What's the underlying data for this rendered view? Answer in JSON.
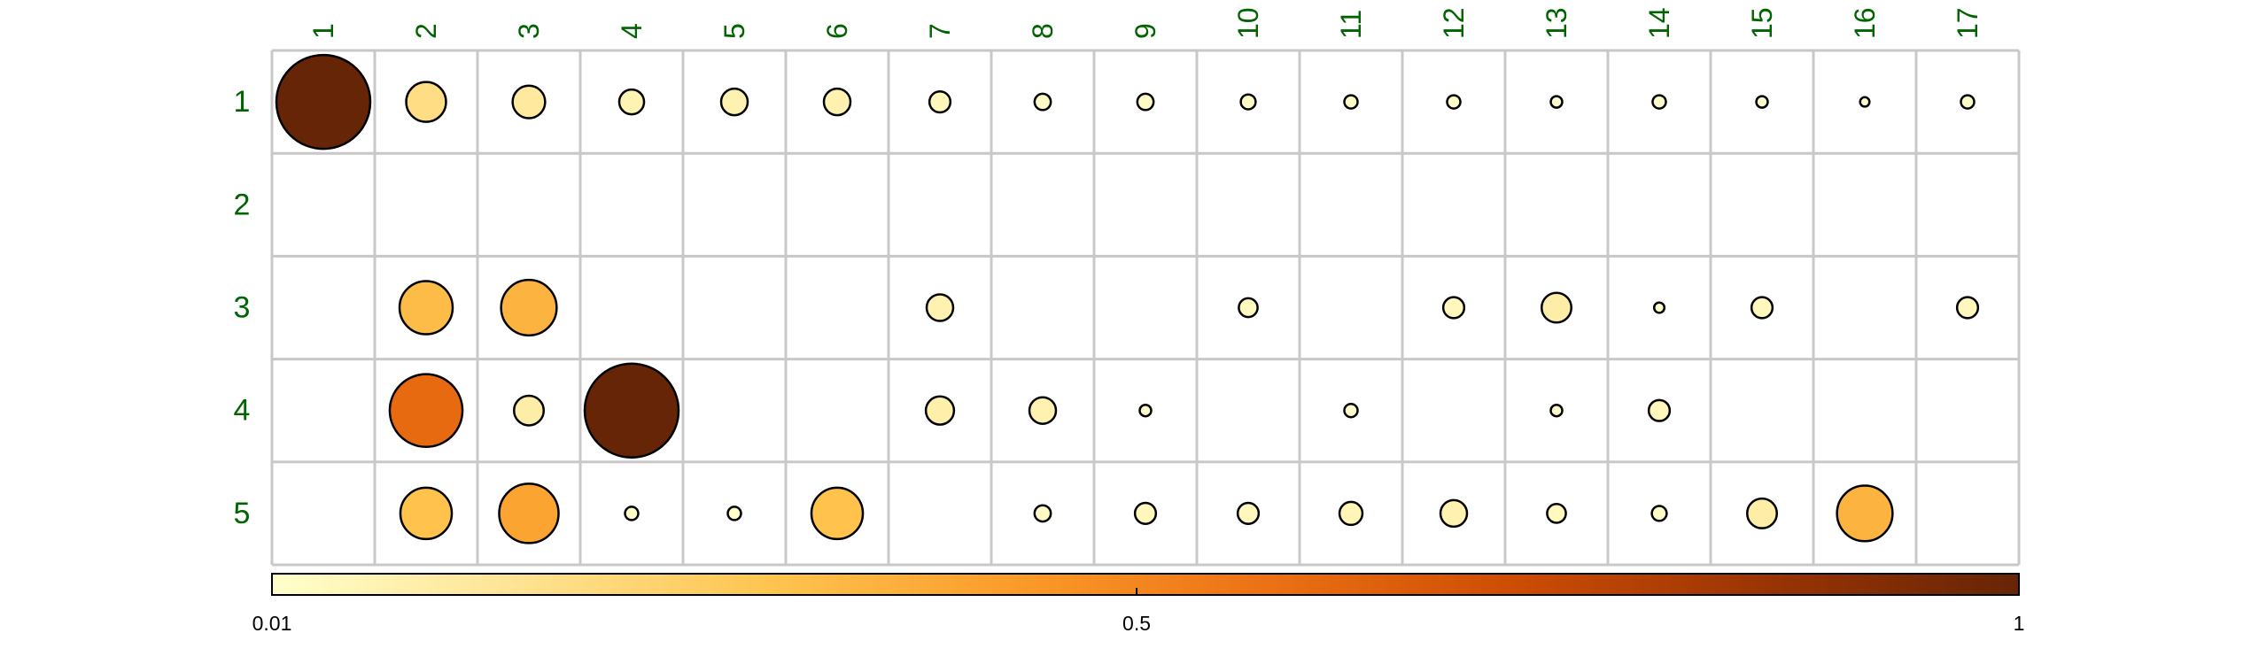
{
  "chart_data": {
    "type": "heatmap",
    "subtype": "bubble-matrix",
    "title": "",
    "xlabel": "",
    "ylabel": "",
    "columns": [
      "1",
      "2",
      "3",
      "4",
      "5",
      "6",
      "7",
      "8",
      "9",
      "10",
      "11",
      "12",
      "13",
      "14",
      "15",
      "16",
      "17"
    ],
    "rows": [
      "1",
      "2",
      "3",
      "4",
      "5"
    ],
    "values": [
      [
        1.0,
        0.18,
        0.12,
        0.07,
        0.08,
        0.08,
        0.05,
        0.03,
        0.03,
        0.025,
        0.02,
        0.02,
        0.015,
        0.02,
        0.015,
        0.01,
        0.02
      ],
      [
        null,
        null,
        null,
        null,
        null,
        null,
        null,
        null,
        null,
        null,
        null,
        null,
        null,
        null,
        null,
        null,
        null
      ],
      [
        null,
        0.32,
        0.35,
        null,
        null,
        null,
        0.08,
        null,
        null,
        0.04,
        null,
        0.05,
        0.1,
        0.012,
        0.05,
        null,
        0.05
      ],
      [
        null,
        0.6,
        0.1,
        1.0,
        null,
        null,
        0.09,
        0.08,
        0.015,
        null,
        0.02,
        null,
        0.015,
        0.05,
        null,
        null,
        null
      ],
      [
        null,
        0.3,
        0.4,
        0.02,
        0.02,
        0.3,
        null,
        0.03,
        0.05,
        0.05,
        0.06,
        0.08,
        0.04,
        0.025,
        0.1,
        0.35,
        null
      ]
    ],
    "color_scale": {
      "min": 0.01,
      "mid": 0.5,
      "max": 1,
      "tick_labels": [
        "0.01",
        "0.5",
        "1"
      ],
      "colors": [
        "#FFFFCC",
        "#FEE391",
        "#FEC44F",
        "#FB9A29",
        "#EC7014",
        "#CC4C02",
        "#993404",
        "#662506"
      ]
    },
    "grid": true,
    "colors": {
      "label_color": "#006400",
      "grid_color": "#C8C8C8",
      "outline_color": "#000000"
    }
  }
}
